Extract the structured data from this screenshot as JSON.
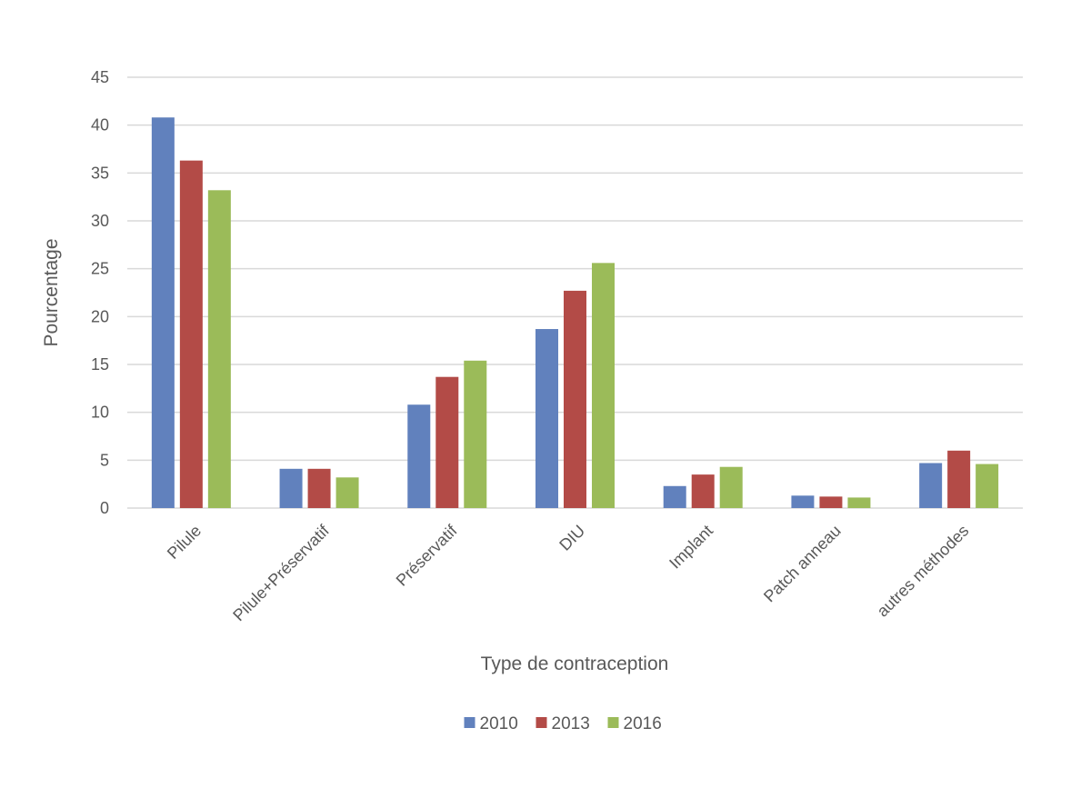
{
  "chart_data": {
    "type": "bar",
    "title": "",
    "xlabel": "Type de contraception",
    "ylabel": "Pourcentage",
    "ylim": [
      0,
      45
    ],
    "yticks": [
      0,
      5,
      10,
      15,
      20,
      25,
      30,
      35,
      40,
      45
    ],
    "grid": true,
    "legend_position": "bottom",
    "categories": [
      "Pilule",
      "Pilule+Préservatif",
      "Préservatif",
      "DIU",
      "Implant",
      "Patch anneau",
      "autres méthodes"
    ],
    "series": [
      {
        "name": "2010",
        "color": "#6181bd",
        "values": [
          40.8,
          4.1,
          10.8,
          18.7,
          2.3,
          1.3,
          4.7
        ]
      },
      {
        "name": "2013",
        "color": "#b34b47",
        "values": [
          36.3,
          4.1,
          13.7,
          22.7,
          3.5,
          1.2,
          6.0
        ]
      },
      {
        "name": "2016",
        "color": "#9bbb59",
        "values": [
          33.2,
          3.2,
          15.4,
          25.6,
          4.3,
          1.1,
          4.6
        ]
      }
    ]
  }
}
